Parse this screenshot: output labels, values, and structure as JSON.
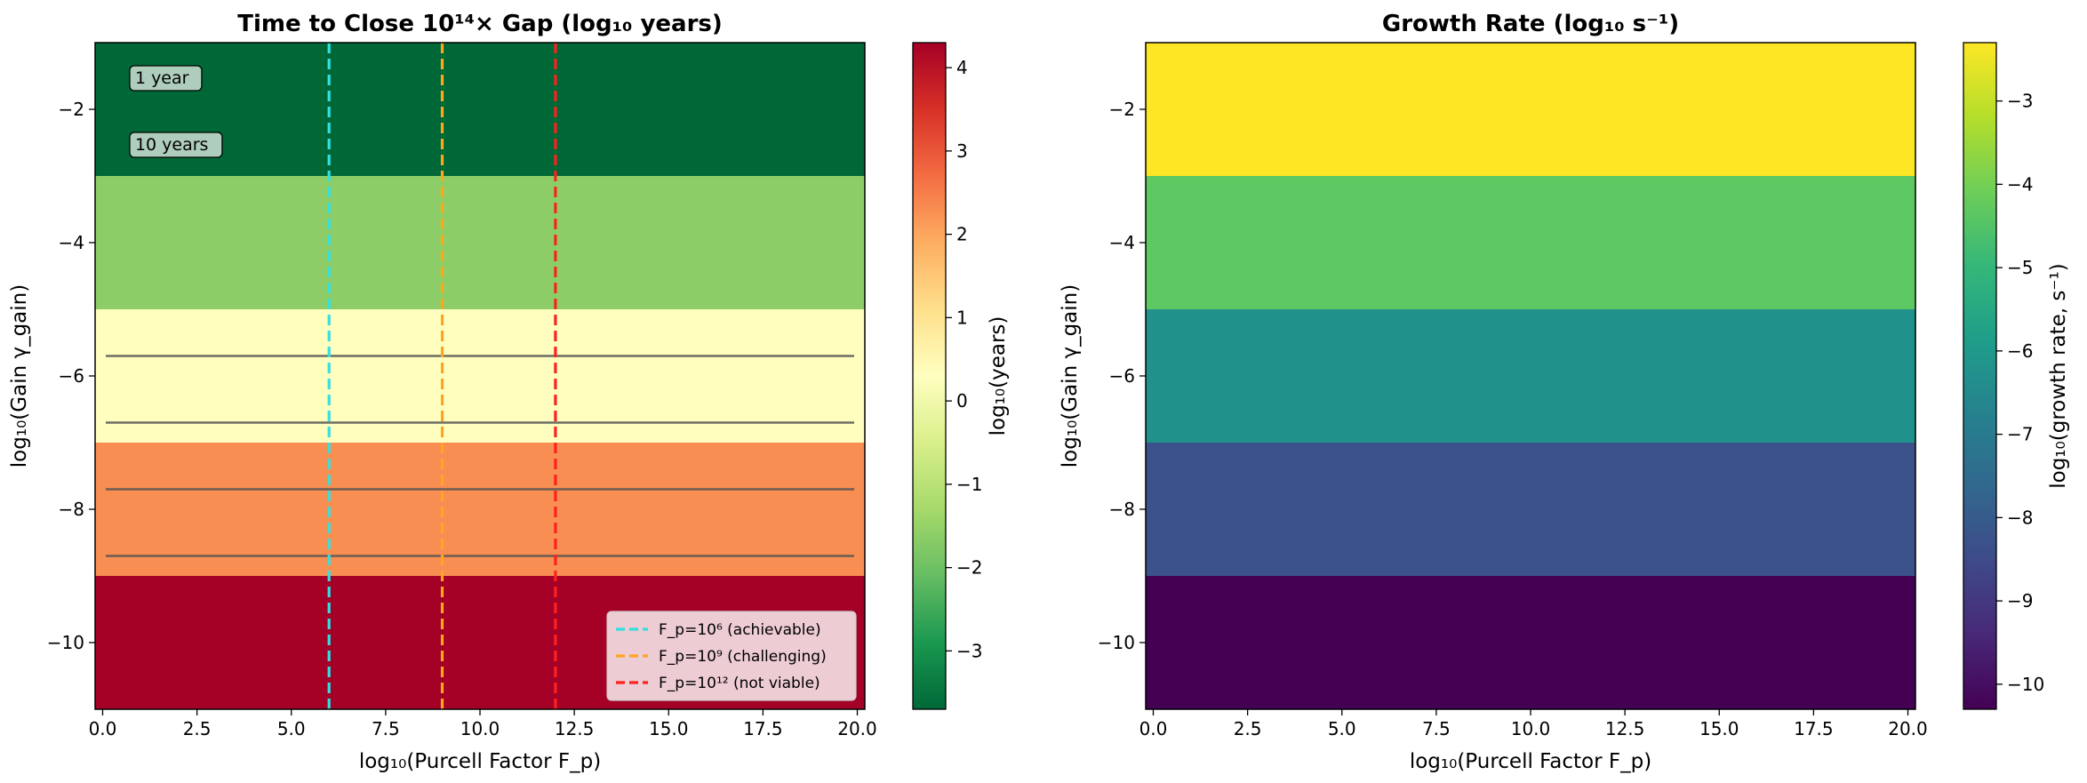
{
  "chart_data": [
    {
      "type": "heatmap",
      "title": "Time to Close 10¹⁴× Gap (log₁₀ years)",
      "xlabel": "log₁₀(Purcell Factor F_p)",
      "ylabel": "log₁₀(Gain γ_gain)",
      "xlim": [
        -0.2,
        20.2
      ],
      "ylim": [
        -11,
        -1
      ],
      "x_ticks": [
        0,
        2.5,
        5,
        7.5,
        10,
        12.5,
        15,
        17.5,
        20
      ],
      "x_tick_labels": [
        "0.0",
        "2.5",
        "5.0",
        "7.5",
        "10.0",
        "12.5",
        "15.0",
        "17.5",
        "20.0"
      ],
      "y_ticks": [
        -2,
        -4,
        -6,
        -8,
        -10
      ],
      "y_tick_labels": [
        "−2",
        "−4",
        "−6",
        "−8",
        "−10"
      ],
      "bands": [
        {
          "y_from": -3,
          "y_to": -1,
          "value": -3.7,
          "color": "#006837"
        },
        {
          "y_from": -5,
          "y_to": -3,
          "value": -1.7,
          "color": "#8ccd67"
        },
        {
          "y_from": -7,
          "y_to": -5,
          "value": 0.3,
          "color": "#fffebe"
        },
        {
          "y_from": -9,
          "y_to": -7,
          "value": 2.3,
          "color": "#f88e52"
        },
        {
          "y_from": -11,
          "y_to": -9,
          "value": 4.3,
          "color": "#a50026"
        }
      ],
      "contour_levels_y": [
        -5.7,
        -6.7,
        -7.7,
        -8.7
      ],
      "contour_color": "#555555",
      "vlines": [
        {
          "x": 6,
          "color": "#33e0e0",
          "label": "F_p=10⁶ (achievable)"
        },
        {
          "x": 9,
          "color": "#ffa520",
          "label": "F_p=10⁹ (challenging)"
        },
        {
          "x": 12,
          "color": "#ff2020",
          "label": "F_p=10¹² (not viable)"
        }
      ],
      "legend_position": "lower-right",
      "annotations": [
        {
          "text": "1 year",
          "x": 1,
          "y": -1.6
        },
        {
          "text": "10 years",
          "x": 1,
          "y": -2.6
        }
      ],
      "colorbar": {
        "label": "log₁₀(years)",
        "cmap": [
          "#006837",
          "#1a9850",
          "#66bd63",
          "#a6d96a",
          "#d9ef8b",
          "#ffffbf",
          "#fee08b",
          "#fdae61",
          "#f46d43",
          "#d73027",
          "#a50026"
        ],
        "vmin": -3.7,
        "vmax": 4.3,
        "ticks": [
          -3,
          -2,
          -1,
          0,
          1,
          2,
          3,
          4
        ],
        "tick_labels": [
          "−3",
          "−2",
          "−1",
          "0",
          "1",
          "2",
          "3",
          "4"
        ]
      }
    },
    {
      "type": "heatmap",
      "title": "Growth Rate (log₁₀ s⁻¹)",
      "xlabel": "log₁₀(Purcell Factor F_p)",
      "ylabel": "log₁₀(Gain γ_gain)",
      "xlim": [
        -0.2,
        20.2
      ],
      "ylim": [
        -11,
        -1
      ],
      "x_ticks": [
        0,
        2.5,
        5,
        7.5,
        10,
        12.5,
        15,
        17.5,
        20
      ],
      "x_tick_labels": [
        "0.0",
        "2.5",
        "5.0",
        "7.5",
        "10.0",
        "12.5",
        "15.0",
        "17.5",
        "20.0"
      ],
      "y_ticks": [
        -2,
        -4,
        -6,
        -8,
        -10
      ],
      "y_tick_labels": [
        "−2",
        "−4",
        "−6",
        "−8",
        "−10"
      ],
      "bands": [
        {
          "y_from": -3,
          "y_to": -1,
          "value": -2.3,
          "color": "#fde725"
        },
        {
          "y_from": -5,
          "y_to": -3,
          "value": -4.3,
          "color": "#5ec962"
        },
        {
          "y_from": -7,
          "y_to": -5,
          "value": -6.3,
          "color": "#21918c"
        },
        {
          "y_from": -9,
          "y_to": -7,
          "value": -8.3,
          "color": "#3b528b"
        },
        {
          "y_from": -11,
          "y_to": -9,
          "value": -10.3,
          "color": "#440154"
        }
      ],
      "colorbar": {
        "label": "log₁₀(growth rate, s⁻¹)",
        "cmap": [
          "#440154",
          "#482878",
          "#3e4a89",
          "#31688e",
          "#26828e",
          "#1f9e89",
          "#35b779",
          "#6ece58",
          "#b5de2b",
          "#fde725"
        ],
        "vmin": -10.3,
        "vmax": -2.3,
        "ticks": [
          -3,
          -4,
          -5,
          -6,
          -7,
          -8,
          -9,
          -10
        ],
        "tick_labels": [
          "−3",
          "−4",
          "−5",
          "−6",
          "−7",
          "−8",
          "−9",
          "−10"
        ]
      }
    }
  ]
}
